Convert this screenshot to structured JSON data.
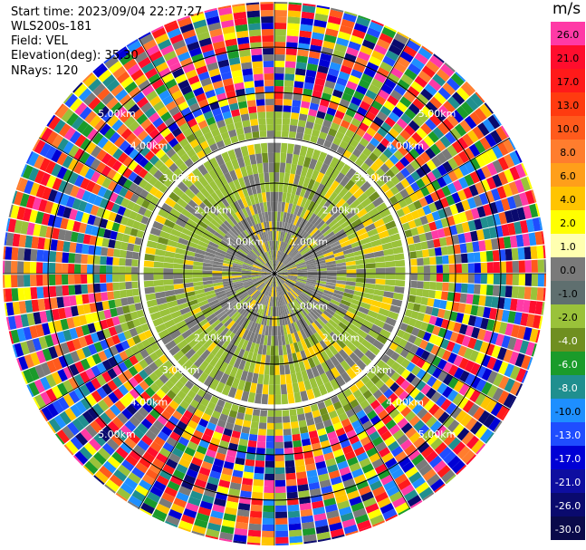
{
  "header": {
    "start_time": "Start time: 2023/09/04 22:27:27",
    "instrument": "WLS200s-181",
    "field": "Field: VEL",
    "elevation": "Elevation(deg): 35.30",
    "nrays": "NRays: 120"
  },
  "colorbar": {
    "unit": "m/s",
    "ticks": [
      "26.0",
      "21.0",
      "17.0",
      "13.0",
      "10.0",
      "8.0",
      "6.0",
      "4.0",
      "2.0",
      "1.0",
      "0.0",
      "-1.0",
      "-2.0",
      "-4.0",
      "-6.0",
      "-8.0",
      "-10.0",
      "-13.0",
      "-17.0",
      "-21.0",
      "-26.0",
      "-30.0"
    ],
    "colors": [
      "#ff3aa6",
      "#ff0d2d",
      "#ff1a1a",
      "#ff3b10",
      "#ff5a1c",
      "#ff7d2e",
      "#ff9f1a",
      "#ffc400",
      "#ffff00",
      "#ffffb0",
      "#7a7a7a",
      "#5f6f6f",
      "#9ac23a",
      "#6f8f20",
      "#1a9b2a",
      "#1f8f8f",
      "#1e8fff",
      "#1f4dff",
      "#0000d5",
      "#0e0ea0",
      "#0a0a6e",
      "#0a0a4a"
    ]
  },
  "chart_data": {
    "type": "heatmap",
    "subtype": "radar-ppi",
    "field": "VEL",
    "units": "m/s",
    "nrays": 120,
    "range_km_max": 6.0,
    "range_rings_km": [
      1.0,
      2.0,
      3.0,
      4.0,
      5.0
    ],
    "ring_labels": [
      "1.00km",
      "2.00km",
      "3.00km",
      "4.00km",
      "5.00km"
    ],
    "color_scale_min": -30.0,
    "color_scale_max": 26.0,
    "grid": true,
    "zones": [
      {
        "range_km": [
          0.0,
          1.5
        ],
        "dominant_values": [
          0.0,
          -1.0,
          1.0,
          -2.0
        ]
      },
      {
        "range_km": [
          1.5,
          3.5
        ],
        "dominant_values": [
          -2.0,
          0.0,
          2.0,
          4.0
        ]
      },
      {
        "range_km": [
          3.5,
          6.0
        ],
        "dominant_values": "noise"
      }
    ]
  }
}
